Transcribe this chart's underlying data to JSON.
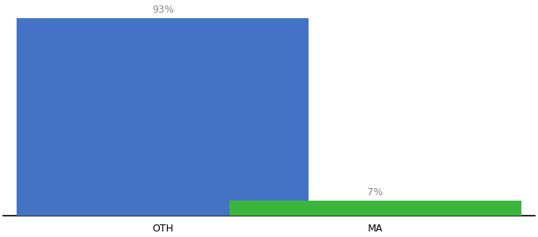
{
  "categories": [
    "OTH",
    "MA"
  ],
  "values": [
    93,
    7
  ],
  "bar_colors": [
    "#4472c4",
    "#3cb53c"
  ],
  "labels": [
    "93%",
    "7%"
  ],
  "ylim": [
    0,
    100
  ],
  "background_color": "#ffffff",
  "label_fontsize": 9,
  "tick_fontsize": 9,
  "bar_width": 0.55,
  "x_positions": [
    0.3,
    0.7
  ],
  "xlim": [
    0.0,
    1.0
  ]
}
